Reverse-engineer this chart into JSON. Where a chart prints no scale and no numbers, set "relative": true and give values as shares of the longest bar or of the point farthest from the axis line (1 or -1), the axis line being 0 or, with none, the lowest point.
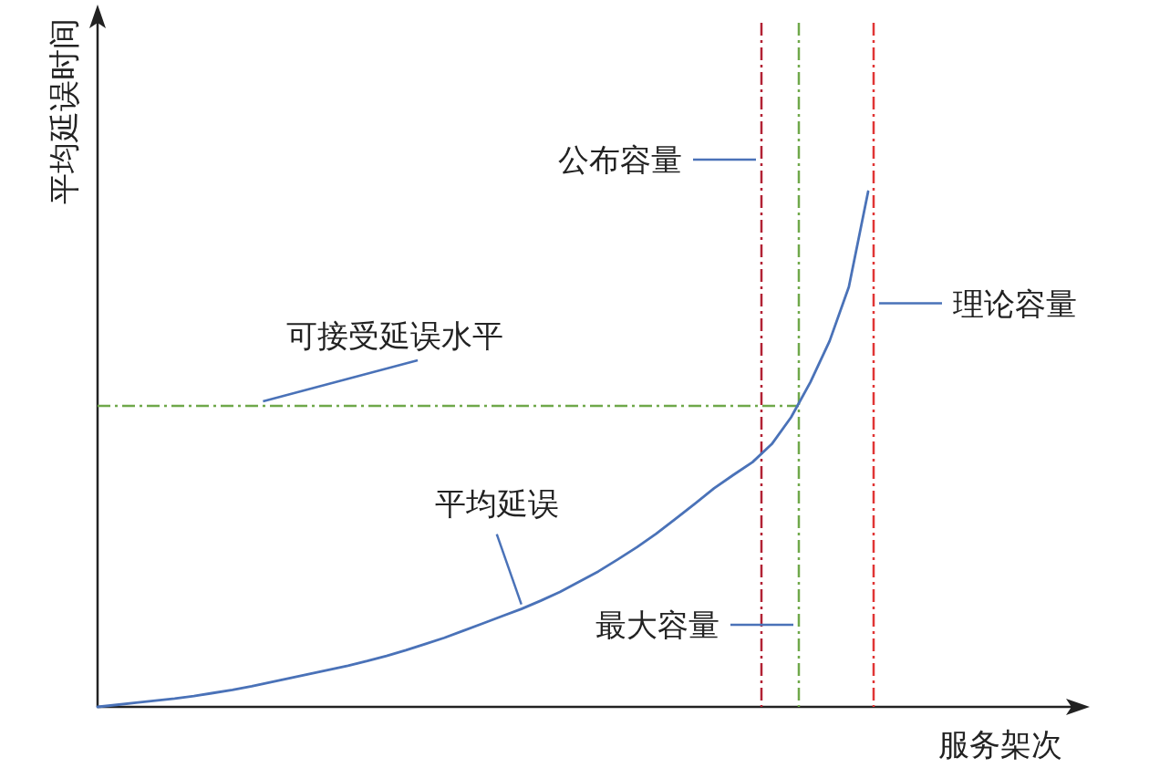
{
  "chart_data": {
    "type": "line",
    "relative": true,
    "xlabel": "服务架次",
    "ylabel": "平均延误时间",
    "categories": [
      null,
      null,
      null,
      null,
      null,
      null,
      null,
      null,
      null,
      null,
      null,
      null,
      null,
      null,
      null,
      null,
      null,
      null,
      null,
      null,
      null,
      null,
      null,
      null,
      null,
      null,
      null,
      null,
      null,
      null,
      null,
      null,
      null,
      null,
      null,
      null,
      null,
      null,
      null,
      null,
      null
    ],
    "series": [
      {
        "color": "#4a72b8",
        "values": [
          0,
          0.004,
          0.008,
          0.012,
          0.016,
          0.021,
          0.027,
          0.033,
          0.04,
          0.048,
          0.056,
          0.064,
          0.072,
          0.08,
          0.089,
          0.099,
          0.11,
          0.122,
          0.134,
          0.148,
          0.162,
          0.176,
          0.19,
          0.206,
          0.223,
          0.243,
          0.263,
          0.286,
          0.31,
          0.336,
          0.365,
          0.394,
          0.424,
          0.45,
          0.475,
          0.51,
          0.562,
          0.63,
          0.71,
          0.815,
          1
        ]
      }
    ],
    "ref_lines": [
      {
        "axis": "y",
        "value": 0.584,
        "label": "可接受延误水平",
        "color": "#6fa84a",
        "line_style": "dashed"
      }
    ],
    "annotations": [
      "平均延误",
      "公布容量",
      "最大容量",
      "理论容量"
    ]
  }
}
